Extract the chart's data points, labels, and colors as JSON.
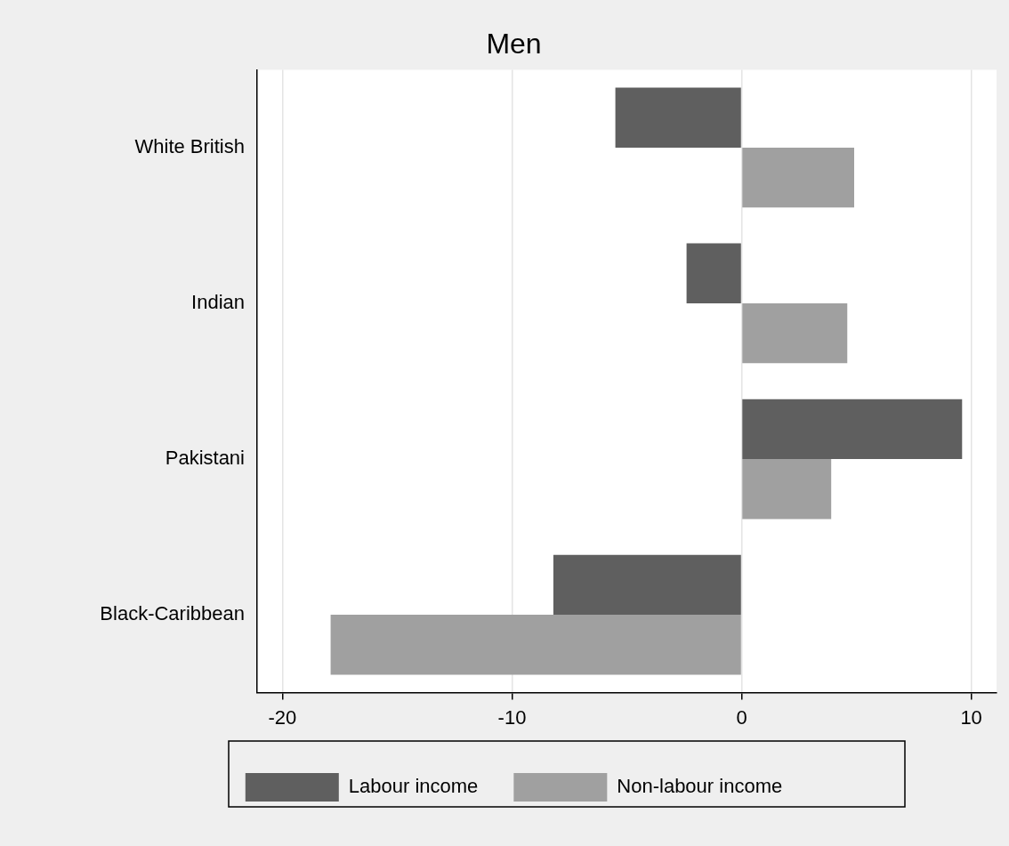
{
  "chart_data": {
    "type": "bar",
    "title": "Men",
    "orientation": "horizontal",
    "categories": [
      "White British",
      "Indian",
      "Pakistani",
      "Black-Caribbean"
    ],
    "series": [
      {
        "name": "Labour income",
        "color": "#5f5f5f",
        "values": [
          -5.5,
          -2.4,
          9.6,
          -8.2
        ]
      },
      {
        "name": "Non-labour income",
        "color": "#a0a0a0",
        "values": [
          4.9,
          4.6,
          3.9,
          -17.9
        ]
      }
    ],
    "xlim": [
      -21.1,
      11.1
    ],
    "xticks": [
      -20,
      -10,
      0,
      10
    ],
    "grid": "x",
    "legend": "bottom"
  }
}
